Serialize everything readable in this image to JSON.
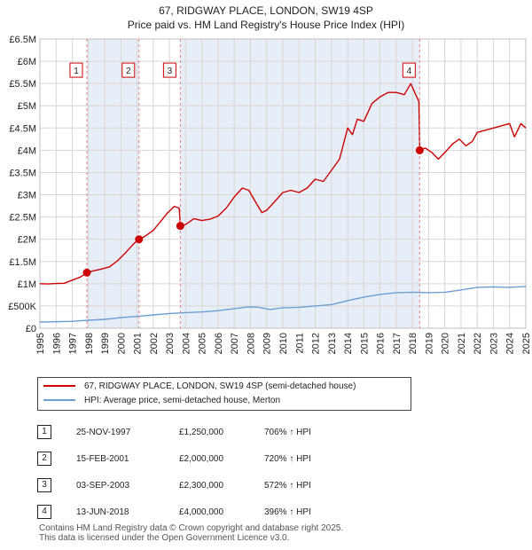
{
  "chart_data": {
    "type": "line",
    "title": "67, RIDGWAY PLACE, LONDON, SW19 4SP",
    "subtitle": "Price paid vs. HM Land Registry's House Price Index (HPI)",
    "ylim": [
      0,
      6500000
    ],
    "xlim": [
      1995,
      2025
    ],
    "y_ticks": [
      {
        "value": 0,
        "label": "£0"
      },
      {
        "value": 500000,
        "label": "£500K"
      },
      {
        "value": 1000000,
        "label": "£1M"
      },
      {
        "value": 1500000,
        "label": "£1.5M"
      },
      {
        "value": 2000000,
        "label": "£2M"
      },
      {
        "value": 2500000,
        "label": "£2.5M"
      },
      {
        "value": 3000000,
        "label": "£3M"
      },
      {
        "value": 3500000,
        "label": "£3.5M"
      },
      {
        "value": 4000000,
        "label": "£4M"
      },
      {
        "value": 4500000,
        "label": "£4.5M"
      },
      {
        "value": 5000000,
        "label": "£5M"
      },
      {
        "value": 5500000,
        "label": "£5.5M"
      },
      {
        "value": 6000000,
        "label": "£6M"
      },
      {
        "value": 6500000,
        "label": "£6.5M"
      }
    ],
    "x_ticks": [
      "1995",
      "1996",
      "1997",
      "1998",
      "1999",
      "2000",
      "2001",
      "2002",
      "2003",
      "2004",
      "2005",
      "2006",
      "2007",
      "2008",
      "2009",
      "2010",
      "2011",
      "2012",
      "2013",
      "2014",
      "2015",
      "2016",
      "2017",
      "2018",
      "2019",
      "2020",
      "2021",
      "2022",
      "2023",
      "2024",
      "2025"
    ],
    "grid": true,
    "shaded_ranges": [
      [
        1997.9,
        2001.12
      ],
      [
        2003.67,
        2018.45
      ]
    ],
    "series": [
      {
        "name": "67, RIDGWAY PLACE, LONDON, SW19 4SP (semi-detached house)",
        "color": "#cc0000",
        "points": [
          [
            1995.0,
            1000000
          ],
          [
            1995.5,
            995000
          ],
          [
            1996.0,
            1005000
          ],
          [
            1996.5,
            1010000
          ],
          [
            1997.0,
            1080000
          ],
          [
            1997.5,
            1150000
          ],
          [
            1997.9,
            1250000
          ],
          [
            1998.3,
            1290000
          ],
          [
            1998.8,
            1330000
          ],
          [
            1999.3,
            1380000
          ],
          [
            1999.8,
            1520000
          ],
          [
            2000.3,
            1700000
          ],
          [
            2000.8,
            1900000
          ],
          [
            2001.12,
            2000000
          ],
          [
            2001.5,
            2070000
          ],
          [
            2002.0,
            2200000
          ],
          [
            2002.5,
            2420000
          ],
          [
            2002.9,
            2600000
          ],
          [
            2003.3,
            2740000
          ],
          [
            2003.6,
            2700000
          ],
          [
            2003.67,
            2300000
          ],
          [
            2004.0,
            2330000
          ],
          [
            2004.5,
            2460000
          ],
          [
            2005.0,
            2420000
          ],
          [
            2005.5,
            2450000
          ],
          [
            2006.0,
            2520000
          ],
          [
            2006.5,
            2700000
          ],
          [
            2007.0,
            2950000
          ],
          [
            2007.5,
            3150000
          ],
          [
            2007.9,
            3100000
          ],
          [
            2008.3,
            2850000
          ],
          [
            2008.7,
            2600000
          ],
          [
            2009.0,
            2650000
          ],
          [
            2009.5,
            2850000
          ],
          [
            2010.0,
            3050000
          ],
          [
            2010.5,
            3100000
          ],
          [
            2011.0,
            3050000
          ],
          [
            2011.5,
            3150000
          ],
          [
            2012.0,
            3350000
          ],
          [
            2012.5,
            3300000
          ],
          [
            2013.0,
            3550000
          ],
          [
            2013.5,
            3800000
          ],
          [
            2014.0,
            4500000
          ],
          [
            2014.3,
            4350000
          ],
          [
            2014.6,
            4700000
          ],
          [
            2015.0,
            4650000
          ],
          [
            2015.5,
            5050000
          ],
          [
            2016.0,
            5200000
          ],
          [
            2016.5,
            5300000
          ],
          [
            2017.0,
            5300000
          ],
          [
            2017.5,
            5250000
          ],
          [
            2017.9,
            5500000
          ],
          [
            2018.2,
            5250000
          ],
          [
            2018.4,
            5100000
          ],
          [
            2018.45,
            4000000
          ],
          [
            2018.8,
            4050000
          ],
          [
            2019.2,
            3950000
          ],
          [
            2019.6,
            3800000
          ],
          [
            2020.0,
            3950000
          ],
          [
            2020.5,
            4150000
          ],
          [
            2020.9,
            4250000
          ],
          [
            2021.3,
            4100000
          ],
          [
            2021.7,
            4200000
          ],
          [
            2022.0,
            4400000
          ],
          [
            2022.5,
            4450000
          ],
          [
            2023.0,
            4500000
          ],
          [
            2023.5,
            4550000
          ],
          [
            2024.0,
            4600000
          ],
          [
            2024.3,
            4300000
          ],
          [
            2024.7,
            4600000
          ],
          [
            2025.0,
            4500000
          ]
        ]
      },
      {
        "name": "HPI: Average price, semi-detached house, Merton",
        "color": "#6a9fd4",
        "points": [
          [
            1995.0,
            140000
          ],
          [
            1996.0,
            145000
          ],
          [
            1997.0,
            155000
          ],
          [
            1998.0,
            180000
          ],
          [
            1999.0,
            200000
          ],
          [
            2000.0,
            240000
          ],
          [
            2001.0,
            265000
          ],
          [
            2002.0,
            300000
          ],
          [
            2003.0,
            330000
          ],
          [
            2004.0,
            350000
          ],
          [
            2005.0,
            365000
          ],
          [
            2006.0,
            395000
          ],
          [
            2007.0,
            440000
          ],
          [
            2007.9,
            480000
          ],
          [
            2008.5,
            470000
          ],
          [
            2009.2,
            420000
          ],
          [
            2010.0,
            460000
          ],
          [
            2011.0,
            470000
          ],
          [
            2012.0,
            500000
          ],
          [
            2013.0,
            530000
          ],
          [
            2014.0,
            620000
          ],
          [
            2015.0,
            700000
          ],
          [
            2016.0,
            760000
          ],
          [
            2017.0,
            800000
          ],
          [
            2018.0,
            810000
          ],
          [
            2019.0,
            800000
          ],
          [
            2020.0,
            810000
          ],
          [
            2021.0,
            860000
          ],
          [
            2022.0,
            920000
          ],
          [
            2023.0,
            930000
          ],
          [
            2024.0,
            920000
          ],
          [
            2025.0,
            940000
          ]
        ]
      }
    ],
    "sales": [
      {
        "n": "1",
        "date": "25-NOV-1997",
        "price": "£1,250,000",
        "hpi": "706% ↑ HPI",
        "x": 1997.9,
        "y": 1250000
      },
      {
        "n": "2",
        "date": "15-FEB-2001",
        "price": "£2,000,000",
        "hpi": "720% ↑ HPI",
        "x": 2001.12,
        "y": 2000000
      },
      {
        "n": "3",
        "date": "03-SEP-2003",
        "price": "£2,300,000",
        "hpi": "572% ↑ HPI",
        "x": 2003.67,
        "y": 2300000
      },
      {
        "n": "4",
        "date": "13-JUN-2018",
        "price": "£4,000,000",
        "hpi": "396% ↑ HPI",
        "x": 2018.45,
        "y": 4000000
      }
    ]
  },
  "footer": {
    "line1": "Contains HM Land Registry data © Crown copyright and database right 2025.",
    "line2": "This data is licensed under the Open Government Licence v3.0."
  }
}
